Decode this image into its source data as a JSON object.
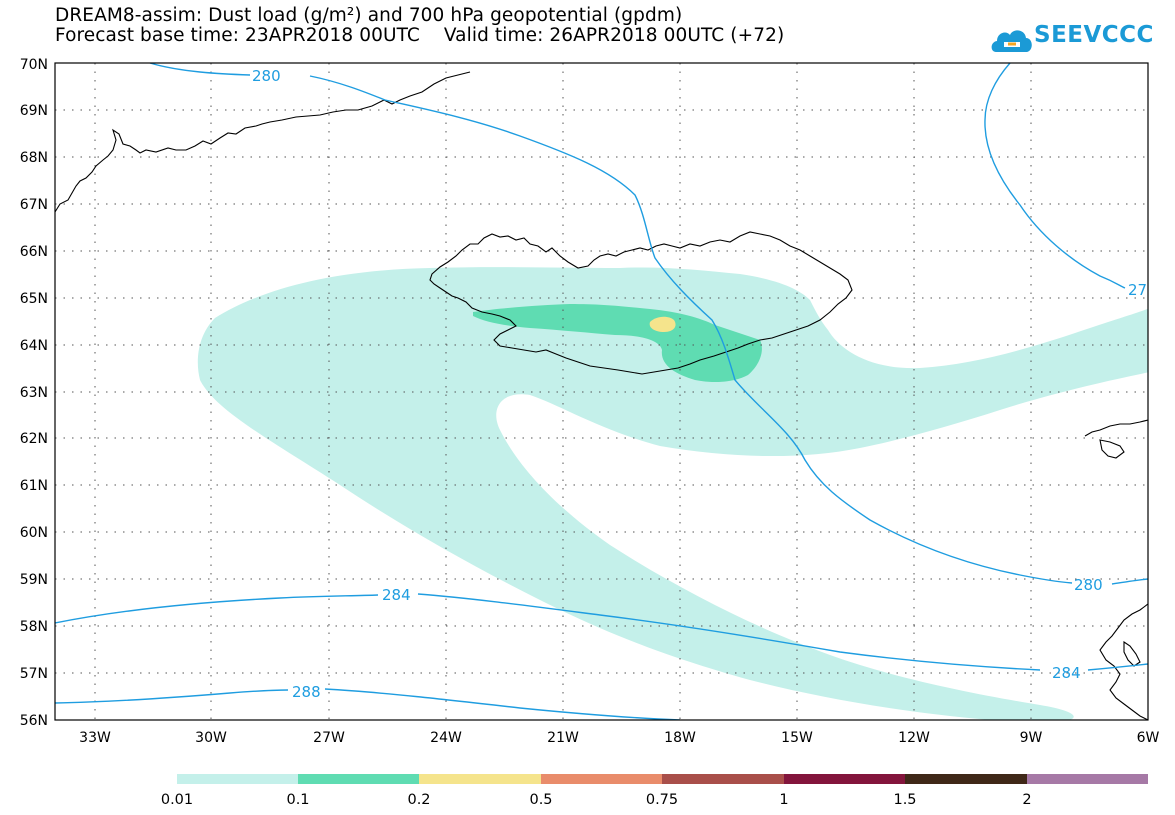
{
  "header": {
    "title_line1": "DREAM8-assim: Dust load (g/m²) and 700 hPa geopotential (gpdm)",
    "title_line2": "Forecast base time: 23APR2018 00UTC    Valid time: 26APR2018 00UTC (+72)"
  },
  "logo": {
    "text": "SEEVCCC",
    "icon": "cloud-icon",
    "color": "#1b9ad6"
  },
  "map": {
    "latitude_labels": [
      "70N",
      "69N",
      "68N",
      "67N",
      "66N",
      "65N",
      "64N",
      "63N",
      "62N",
      "61N",
      "60N",
      "59N",
      "58N",
      "57N",
      "56N"
    ],
    "longitude_labels": [
      "33W",
      "30W",
      "27W",
      "24W",
      "21W",
      "18W",
      "15W",
      "12W",
      "9W",
      "6W"
    ],
    "contour_color": "#1f9de0",
    "coastline_color": "#000000",
    "contour_labels": [
      {
        "id": "c280-top",
        "text": "280"
      },
      {
        "id": "c280-right",
        "text": "280"
      },
      {
        "id": "c27-edge",
        "text": "27"
      },
      {
        "id": "c284-left",
        "text": "284"
      },
      {
        "id": "c284-right",
        "text": "284"
      },
      {
        "id": "c288",
        "text": "288"
      }
    ]
  },
  "colorbar": {
    "colors": [
      "#c4f0ea",
      "#5fdcb2",
      "#f5e48c",
      "#e98c6b",
      "#a94f4a",
      "#83153c",
      "#3f2818",
      "#a679a6"
    ],
    "labels": [
      "0.01",
      "0.1",
      "0.2",
      "0.5",
      "0.75",
      "1",
      "1.5",
      "2"
    ]
  }
}
